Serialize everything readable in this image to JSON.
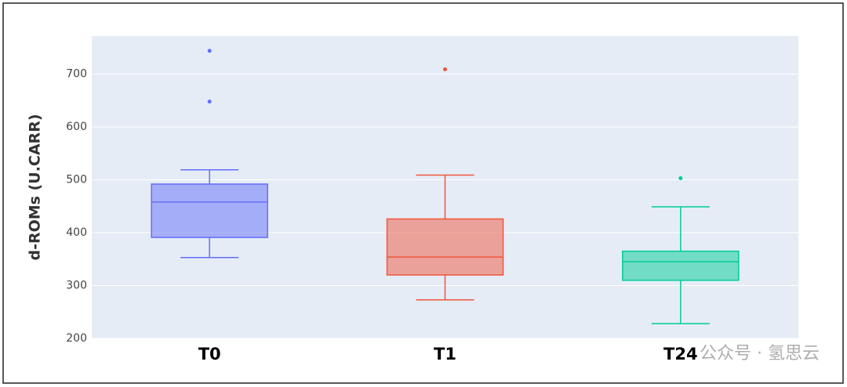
{
  "chart_data": {
    "type": "box",
    "y_label": "d-ROMs (U.CARR)",
    "categories": [
      "T0",
      "T1",
      "T24"
    ],
    "colors": [
      "#636efa",
      "#ef553b",
      "#00cc96"
    ],
    "boxes": [
      {
        "low": 353,
        "q1": 391,
        "median": 458,
        "q3": 492,
        "high": 519,
        "outliers": [
          648,
          744
        ]
      },
      {
        "low": 273,
        "q1": 320,
        "median": 354,
        "q3": 426,
        "high": 509,
        "outliers": [
          709
        ]
      },
      {
        "low": 228,
        "q1": 310,
        "median": 345,
        "q3": 365,
        "high": 449,
        "outliers": [
          503
        ]
      }
    ],
    "ylim": [
      200,
      772
    ],
    "yticks": [
      200,
      300,
      400,
      500,
      600,
      700
    ],
    "grid": true,
    "watermark": "公众号 · 氢思云"
  }
}
